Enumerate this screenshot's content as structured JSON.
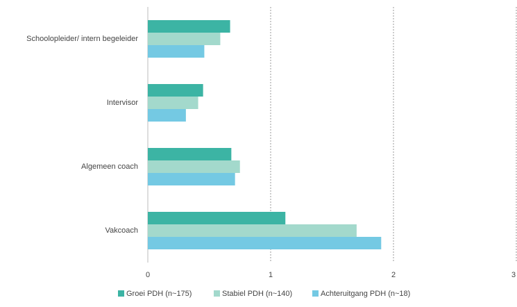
{
  "chart_data": {
    "type": "barh",
    "categories": [
      "Schoolopleider/  intern begeleider",
      "Intervisor",
      "Algemeen coach",
      "Vakcoach"
    ],
    "series": [
      {
        "name": "Groei PDH (n~175)",
        "color": "#3cb4a4",
        "values": [
          0.67,
          0.45,
          0.68,
          1.12
        ]
      },
      {
        "name": "Stabiel PDH (n~140)",
        "color": "#a3d9cc",
        "values": [
          0.59,
          0.41,
          0.75,
          1.7
        ]
      },
      {
        "name": "Achteruitgang PDH (n~18)",
        "color": "#74c9e3",
        "values": [
          0.46,
          0.31,
          0.71,
          1.9
        ]
      }
    ],
    "xlim": [
      0,
      3
    ],
    "xticks": [
      0,
      1,
      2,
      3
    ],
    "grid": true,
    "legend": "bottom"
  }
}
